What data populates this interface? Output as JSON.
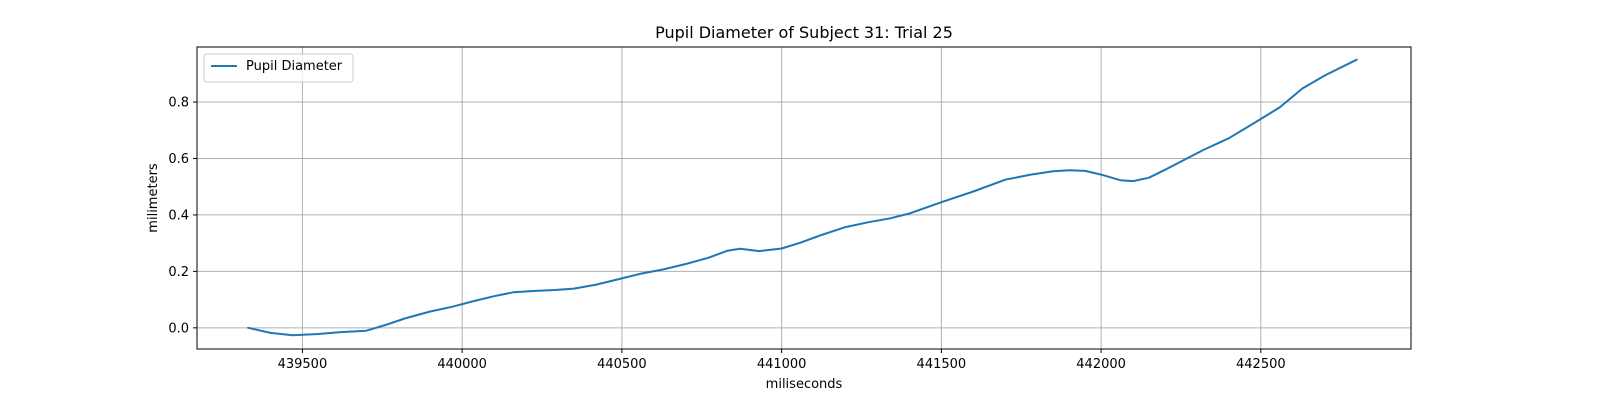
{
  "chart_data": {
    "type": "line",
    "title": "Pupil Diameter of Subject 31: Trial 25",
    "xlabel": "miliseconds",
    "ylabel": "milimeters",
    "xlim": [
      439170,
      442970
    ],
    "ylim": [
      -0.075,
      0.995
    ],
    "xticks": [
      439500,
      440000,
      440500,
      441000,
      441500,
      442000,
      442500
    ],
    "xtick_labels": [
      "439500",
      "440000",
      "440500",
      "441000",
      "441500",
      "442000",
      "442500"
    ],
    "yticks": [
      0.0,
      0.2,
      0.4,
      0.6,
      0.8
    ],
    "ytick_labels": [
      "0.0",
      "0.2",
      "0.4",
      "0.6",
      "0.8"
    ],
    "grid": true,
    "legend": {
      "position": "upper-left",
      "entries": [
        "Pupil Diameter"
      ]
    },
    "series": [
      {
        "name": "Pupil Diameter",
        "color": "#1f77b4",
        "x": [
          439330,
          439400,
          439470,
          439550,
          439620,
          439700,
          439760,
          439820,
          439900,
          439970,
          440030,
          440100,
          440160,
          440230,
          440290,
          440350,
          440420,
          440500,
          440560,
          440630,
          440700,
          440770,
          440830,
          440870,
          440930,
          441000,
          441060,
          441120,
          441200,
          441270,
          441340,
          441400,
          441500,
          441600,
          441700,
          441780,
          441850,
          441900,
          441950,
          442000,
          442060,
          442100,
          442150,
          442200,
          442260,
          442320,
          442400,
          442450,
          442500,
          442560,
          442630,
          442700,
          442800
        ],
        "y": [
          0.0,
          -0.018,
          -0.026,
          -0.022,
          -0.015,
          -0.01,
          0.01,
          0.033,
          0.058,
          0.075,
          0.093,
          0.112,
          0.126,
          0.131,
          0.134,
          0.139,
          0.153,
          0.175,
          0.192,
          0.207,
          0.226,
          0.248,
          0.273,
          0.28,
          0.272,
          0.281,
          0.302,
          0.327,
          0.357,
          0.374,
          0.388,
          0.405,
          0.445,
          0.483,
          0.525,
          0.543,
          0.555,
          0.558,
          0.556,
          0.543,
          0.523,
          0.52,
          0.532,
          0.56,
          0.595,
          0.63,
          0.672,
          0.706,
          0.74,
          0.782,
          0.848,
          0.894,
          0.95
        ]
      }
    ]
  }
}
